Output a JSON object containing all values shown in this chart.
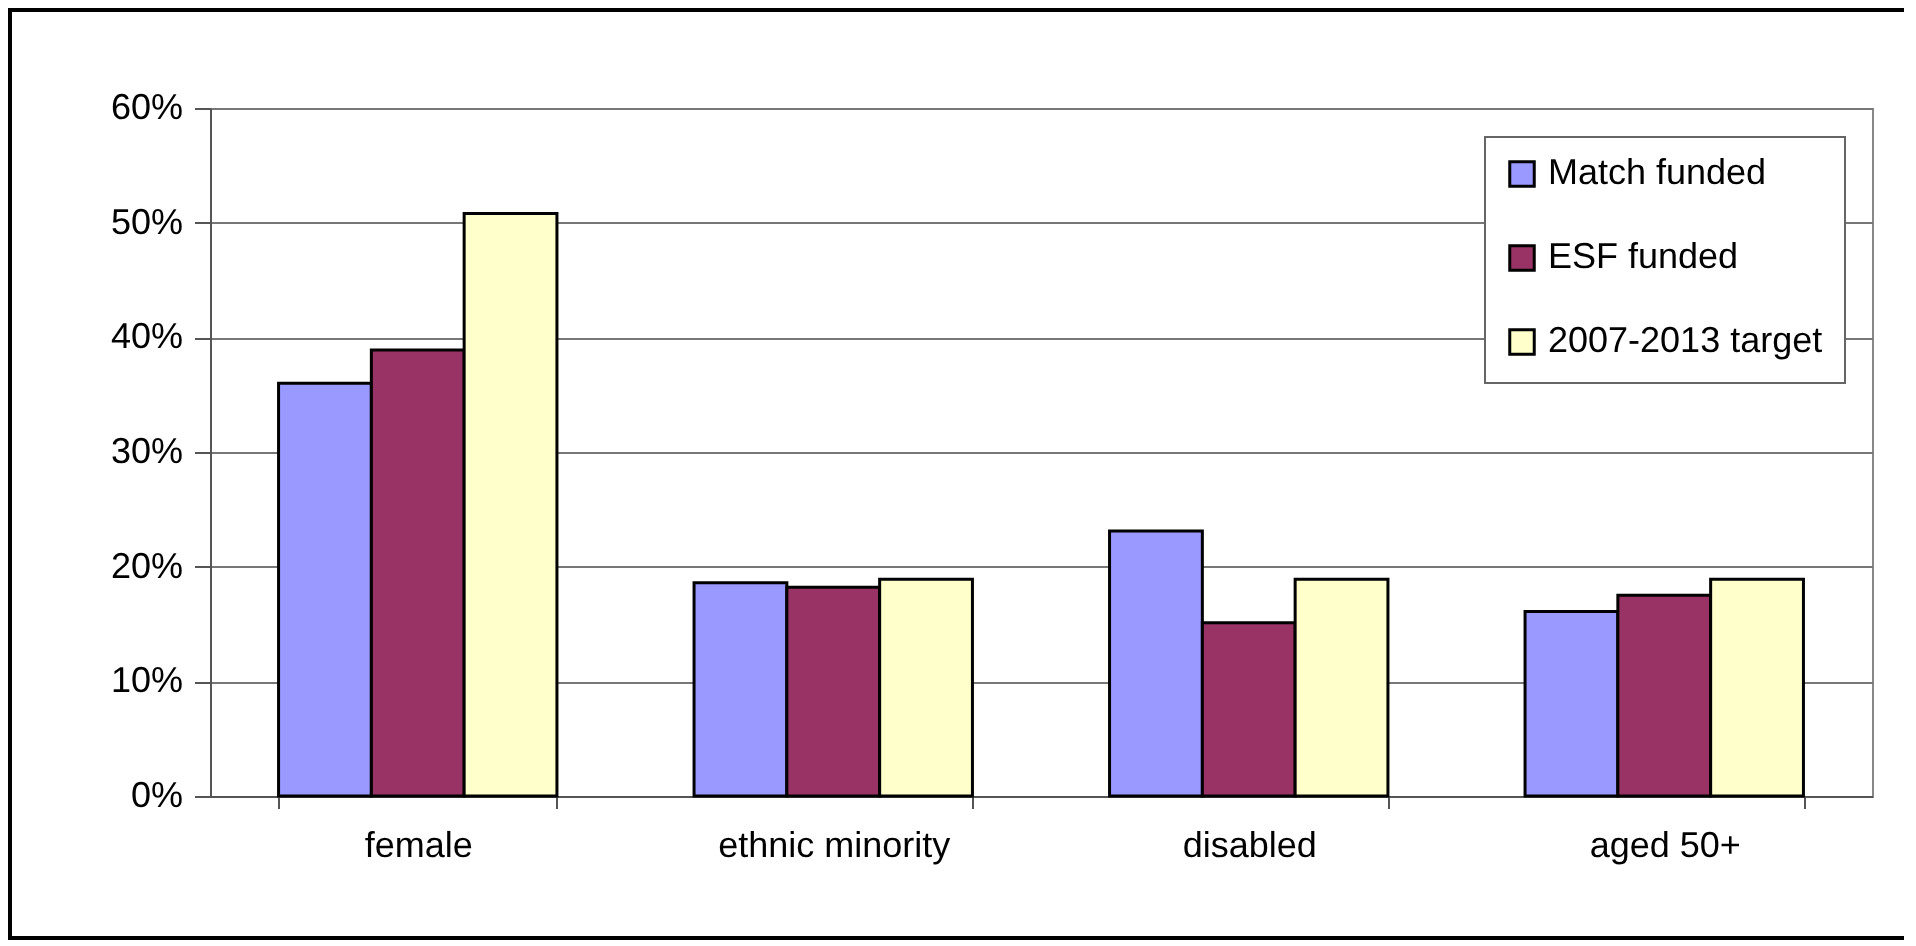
{
  "chart_data": {
    "type": "bar",
    "categories": [
      "female",
      "ethnic minority",
      "disabled",
      "aged 50+"
    ],
    "series": [
      {
        "name": "Match funded",
        "color": "#9999ff",
        "values": [
          36,
          18.6,
          23.1,
          16.1
        ]
      },
      {
        "name": "ESF funded",
        "color": "#993366",
        "values": [
          38.9,
          18.2,
          15.1,
          17.5
        ]
      },
      {
        "name": "2007-2013 target",
        "color": "#ffffcc",
        "values": [
          50.8,
          18.9,
          18.9,
          18.9
        ]
      }
    ],
    "ylim": [
      0,
      60
    ],
    "yticks": [
      {
        "value": 0,
        "label": "0%"
      },
      {
        "value": 10,
        "label": "10%"
      },
      {
        "value": 20,
        "label": "20%"
      },
      {
        "value": 30,
        "label": "30%"
      },
      {
        "value": 40,
        "label": "40%"
      },
      {
        "value": 50,
        "label": "50%"
      },
      {
        "value": 60,
        "label": "60%"
      }
    ],
    "grid": "y",
    "legend": "top right"
  }
}
